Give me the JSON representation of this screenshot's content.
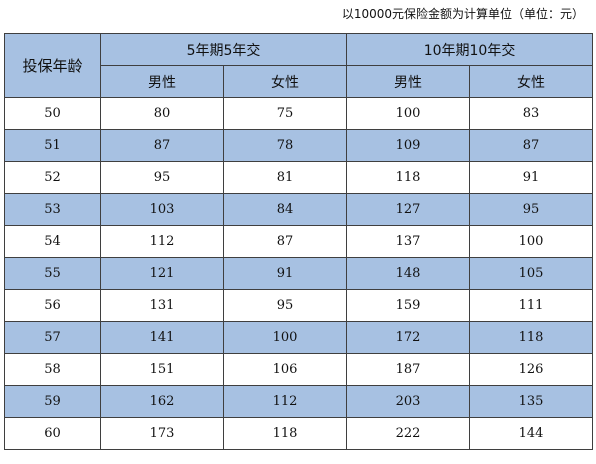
{
  "caption": "以10000元保险金额为计算单位（单位：元）",
  "header": {
    "age_label": "投保年龄",
    "groups": [
      "5年期5年交",
      "10年期10年交"
    ],
    "sub": [
      "男性",
      "女性",
      "男性",
      "女性"
    ]
  },
  "rows": [
    {
      "age": "50",
      "v": [
        "80",
        "75",
        "100",
        "83"
      ]
    },
    {
      "age": "51",
      "v": [
        "87",
        "78",
        "109",
        "87"
      ]
    },
    {
      "age": "52",
      "v": [
        "95",
        "81",
        "118",
        "91"
      ]
    },
    {
      "age": "53",
      "v": [
        "103",
        "84",
        "127",
        "95"
      ]
    },
    {
      "age": "54",
      "v": [
        "112",
        "87",
        "137",
        "100"
      ]
    },
    {
      "age": "55",
      "v": [
        "121",
        "91",
        "148",
        "105"
      ]
    },
    {
      "age": "56",
      "v": [
        "131",
        "95",
        "159",
        "111"
      ]
    },
    {
      "age": "57",
      "v": [
        "141",
        "100",
        "172",
        "118"
      ]
    },
    {
      "age": "58",
      "v": [
        "151",
        "106",
        "187",
        "126"
      ]
    },
    {
      "age": "59",
      "v": [
        "162",
        "112",
        "203",
        "135"
      ]
    },
    {
      "age": "60",
      "v": [
        "173",
        "118",
        "222",
        "144"
      ]
    }
  ],
  "colors": {
    "header_fill": "#a7c1e2",
    "alt_row_fill": "#a7c1e2",
    "border": "#3f3f3f"
  }
}
